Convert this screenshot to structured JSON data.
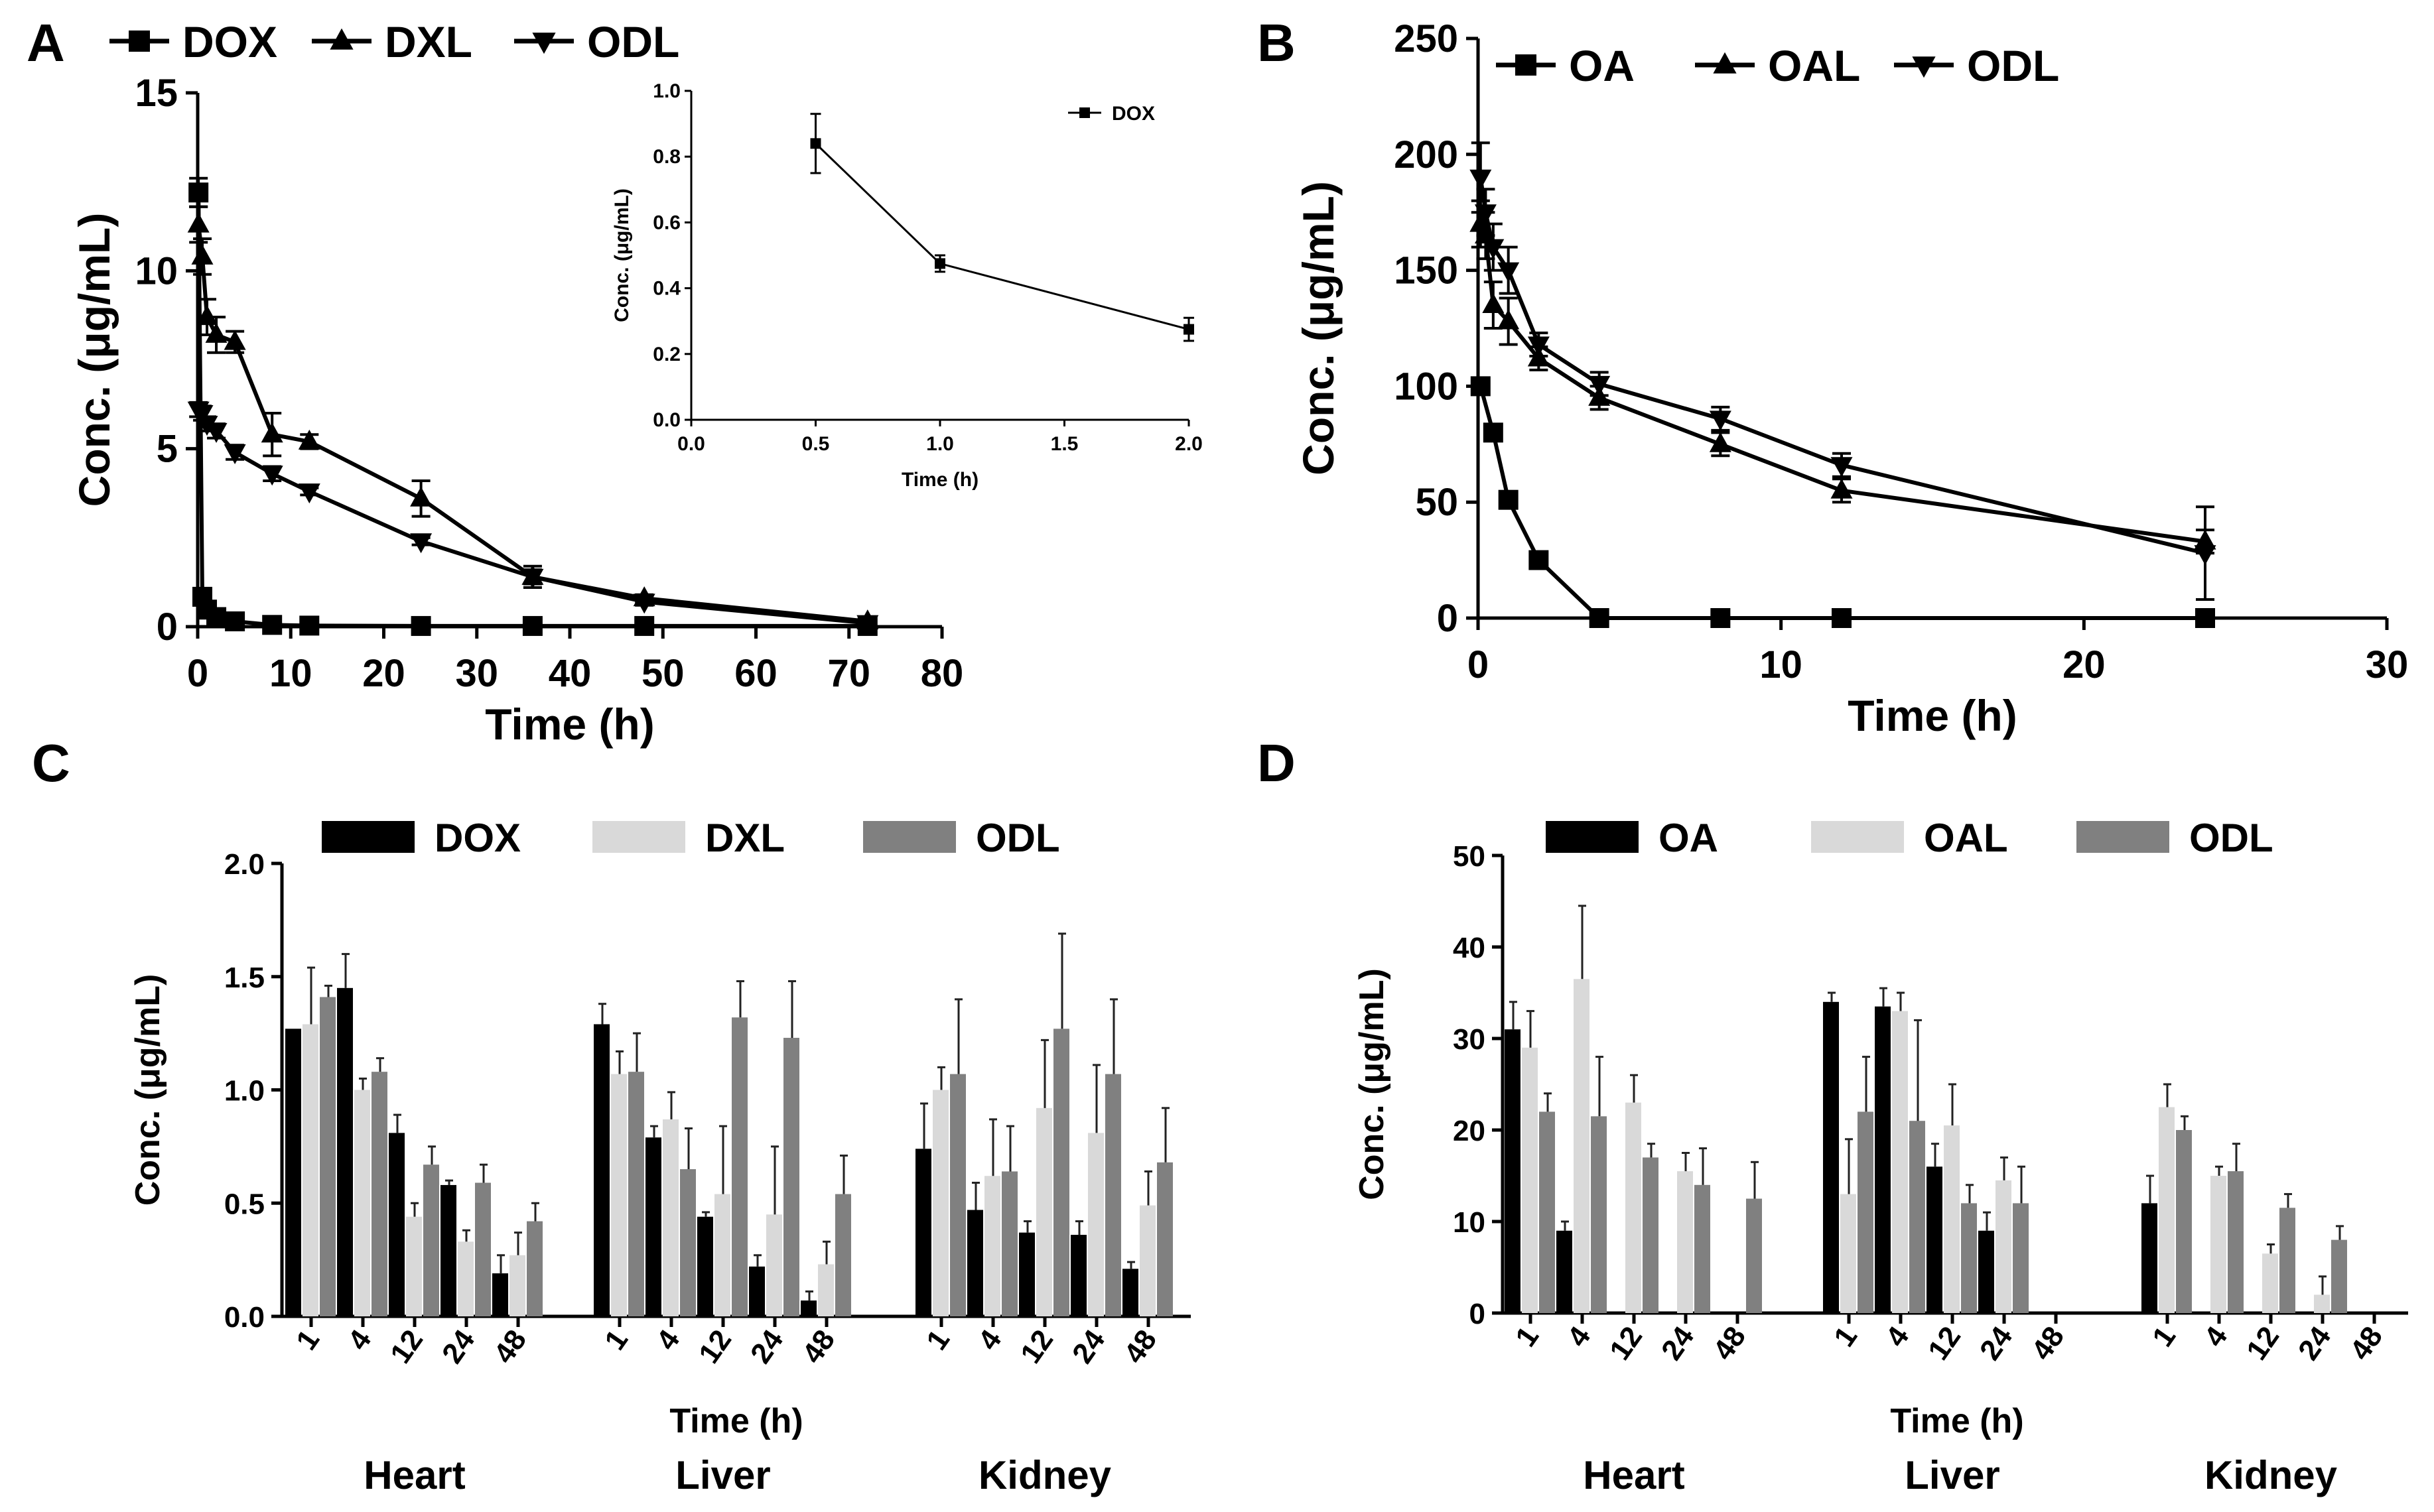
{
  "chart_data": [
    {
      "panel": "A",
      "type": "line",
      "xlabel": "Time (h)",
      "ylabel": "Conc. (μg/mL)",
      "xlim": [
        0,
        80
      ],
      "ylim": [
        0,
        15
      ],
      "xticks": [
        0,
        10,
        20,
        30,
        40,
        50,
        60,
        70,
        80
      ],
      "yticks": [
        0,
        5,
        10,
        15
      ],
      "legend": [
        "DOX",
        "DXL",
        "ODL"
      ],
      "series": [
        {
          "name": "DOX",
          "marker": "square",
          "x": [
            0.083,
            0.5,
            1,
            2,
            4,
            8,
            12,
            24,
            36,
            48,
            72
          ],
          "y": [
            12.2,
            0.84,
            0.48,
            0.27,
            0.15,
            0.05,
            0.03,
            0.02,
            0.02,
            0.02,
            0.02
          ],
          "err": [
            0.4,
            0.09,
            0.03,
            0.03,
            0.02,
            0,
            0,
            0,
            0,
            0,
            0
          ]
        },
        {
          "name": "DXL",
          "marker": "triangle-up",
          "x": [
            0.083,
            0.5,
            1,
            2,
            4,
            8,
            12,
            24,
            36,
            48,
            72
          ],
          "y": [
            11.3,
            10.4,
            8.7,
            8.2,
            8.0,
            5.4,
            5.2,
            3.6,
            1.4,
            0.8,
            0.15
          ],
          "err": [
            0.5,
            0.5,
            0.5,
            0.5,
            0.3,
            0.6,
            0.2,
            0.5,
            0.3,
            0.1,
            0.1
          ]
        },
        {
          "name": "ODL",
          "marker": "triangle-down",
          "x": [
            0.083,
            0.5,
            1,
            2,
            4,
            8,
            12,
            24,
            36,
            48,
            72
          ],
          "y": [
            6.1,
            6.0,
            5.7,
            5.5,
            4.9,
            4.3,
            3.8,
            2.4,
            1.4,
            0.7,
            0.1
          ],
          "err": [
            0.2,
            0.2,
            0.2,
            0.2,
            0.2,
            0.2,
            0.1,
            0.1,
            0.2,
            0.1,
            0.1
          ]
        }
      ],
      "inset": {
        "type": "line",
        "xlabel": "Time (h)",
        "ylabel": "Conc. (μg/mL)",
        "xlim": [
          0.0,
          2.0
        ],
        "ylim": [
          0.0,
          1.0
        ],
        "xticks": [
          "0.0",
          "0.5",
          "1.0",
          "1.5",
          "2.0"
        ],
        "yticks": [
          "0.0",
          "0.2",
          "0.4",
          "0.6",
          "0.8",
          "1.0"
        ],
        "legend": [
          "DOX"
        ],
        "series": [
          {
            "name": "DOX",
            "x": [
              0.5,
              1.0,
              2.0
            ],
            "y": [
              0.84,
              0.475,
              0.275
            ],
            "err": [
              0.09,
              0.025,
              0.035
            ]
          }
        ]
      }
    },
    {
      "panel": "B",
      "type": "line",
      "xlabel": "Time (h)",
      "ylabel": "Conc. (μg/mL)",
      "xlim": [
        0,
        30
      ],
      "ylim": [
        0,
        250
      ],
      "xticks": [
        0,
        10,
        20,
        30
      ],
      "yticks": [
        0,
        50,
        100,
        150,
        200,
        250
      ],
      "legend": [
        "OA",
        "OAL",
        "ODL"
      ],
      "series": [
        {
          "name": "OA",
          "marker": "square",
          "x": [
            0.083,
            0.5,
            1,
            2,
            4,
            8,
            12,
            24
          ],
          "y": [
            100,
            80,
            51,
            25,
            0,
            0,
            0,
            0
          ],
          "err": [
            3,
            3,
            2,
            2,
            0,
            0,
            0,
            0
          ]
        },
        {
          "name": "OAL",
          "marker": "triangle-up",
          "x": [
            0.083,
            0.25,
            0.5,
            1,
            2,
            4,
            8,
            12,
            24
          ],
          "y": [
            170,
            165,
            135,
            128,
            112,
            95,
            75,
            55,
            33
          ],
          "err": [
            10,
            10,
            10,
            10,
            5,
            5,
            5,
            5,
            5
          ]
        },
        {
          "name": "ODL",
          "marker": "triangle-down",
          "x": [
            0.083,
            0.25,
            0.5,
            1,
            2,
            4,
            8,
            12,
            24
          ],
          "y": [
            190,
            175,
            160,
            150,
            118,
            101,
            86,
            66,
            28
          ],
          "err": [
            15,
            10,
            10,
            10,
            5,
            5,
            5,
            5,
            20
          ]
        }
      ]
    },
    {
      "panel": "C",
      "type": "bar",
      "xlabel": "Time (h)",
      "ylabel": "Conc. (μg/mL)",
      "ylim": [
        0,
        2.0
      ],
      "yticks": [
        "0.0",
        "0.5",
        "1.0",
        "1.5",
        "2.0"
      ],
      "legend": [
        "DOX",
        "DXL",
        "ODL"
      ],
      "categories": [
        "1",
        "4",
        "12",
        "24",
        "48"
      ],
      "groups": [
        {
          "organ": "Heart",
          "series": [
            {
              "name": "DOX",
              "values": [
                1.27,
                1.45,
                0.81,
                0.58,
                0.19
              ],
              "err": [
                0,
                0.15,
                0.08,
                0.02,
                0.08
              ]
            },
            {
              "name": "DXL",
              "values": [
                1.29,
                1.0,
                0.44,
                0.33,
                0.27
              ],
              "err": [
                0.25,
                0.05,
                0.06,
                0.05,
                0.1
              ]
            },
            {
              "name": "ODL",
              "values": [
                1.41,
                1.08,
                0.67,
                0.59,
                0.42
              ],
              "err": [
                0.05,
                0.06,
                0.08,
                0.08,
                0.08
              ]
            }
          ]
        },
        {
          "organ": "Liver",
          "series": [
            {
              "name": "DOX",
              "values": [
                1.29,
                0.79,
                0.44,
                0.22,
                0.07
              ],
              "err": [
                0.09,
                0.05,
                0.02,
                0.05,
                0.04
              ]
            },
            {
              "name": "DXL",
              "values": [
                1.07,
                0.87,
                0.54,
                0.45,
                0.23
              ],
              "err": [
                0.1,
                0.12,
                0.3,
                0.3,
                0.1
              ]
            },
            {
              "name": "ODL",
              "values": [
                1.08,
                0.65,
                1.32,
                1.23,
                0.54
              ],
              "err": [
                0.17,
                0.18,
                0.16,
                0.25,
                0.17
              ]
            }
          ]
        },
        {
          "organ": "Kidney",
          "series": [
            {
              "name": "DOX",
              "values": [
                0.74,
                0.47,
                0.37,
                0.36,
                0.21
              ],
              "err": [
                0.2,
                0.12,
                0.05,
                0.06,
                0.03
              ]
            },
            {
              "name": "DXL",
              "values": [
                1.0,
                0.62,
                0.92,
                0.81,
                0.49
              ],
              "err": [
                0.1,
                0.25,
                0.3,
                0.3,
                0.15
              ]
            },
            {
              "name": "ODL",
              "values": [
                1.07,
                0.64,
                1.27,
                1.07,
                0.68
              ],
              "err": [
                0.33,
                0.2,
                0.42,
                0.33,
                0.24
              ]
            }
          ]
        }
      ]
    },
    {
      "panel": "D",
      "type": "bar",
      "xlabel": "Time (h)",
      "ylabel": "Conc. (μg/mL)",
      "ylim": [
        0,
        50
      ],
      "yticks": [
        "0",
        "10",
        "20",
        "30",
        "40",
        "50"
      ],
      "legend": [
        "OA",
        "OAL",
        "ODL"
      ],
      "categories": [
        "1",
        "4",
        "12",
        "24",
        "48"
      ],
      "groups": [
        {
          "organ": "Heart",
          "series": [
            {
              "name": "OA",
              "values": [
                31,
                9,
                0,
                0,
                0
              ],
              "err": [
                3,
                1,
                0,
                0,
                0
              ]
            },
            {
              "name": "OAL",
              "values": [
                29,
                36.5,
                23,
                15.5,
                0
              ],
              "err": [
                4,
                8,
                3,
                2,
                0
              ]
            },
            {
              "name": "ODL",
              "values": [
                22,
                21.5,
                17,
                14,
                12.5
              ],
              "err": [
                2,
                6.5,
                1.5,
                4,
                4
              ]
            }
          ]
        },
        {
          "organ": "Liver",
          "series": [
            {
              "name": "OA",
              "values": [
                34,
                33.5,
                16,
                9,
                0
              ],
              "err": [
                1,
                2,
                2.5,
                2,
                0
              ]
            },
            {
              "name": "OAL",
              "values": [
                13,
                33,
                20.5,
                14.5,
                0
              ],
              "err": [
                6,
                2,
                4.5,
                2.5,
                0
              ]
            },
            {
              "name": "ODL",
              "values": [
                22,
                21,
                12,
                12,
                0
              ],
              "err": [
                6,
                11,
                2,
                4,
                0
              ]
            }
          ]
        },
        {
          "organ": "Kidney",
          "series": [
            {
              "name": "OA",
              "values": [
                12,
                0,
                0,
                0,
                0
              ],
              "err": [
                3,
                0,
                0,
                0,
                0
              ]
            },
            {
              "name": "OAL",
              "values": [
                22.5,
                15,
                6.5,
                2,
                0
              ],
              "err": [
                2.5,
                1,
                1,
                2,
                0
              ]
            },
            {
              "name": "ODL",
              "values": [
                20,
                15.5,
                11.5,
                8,
                0
              ],
              "err": [
                1.5,
                3,
                1.5,
                1.5,
                0
              ]
            }
          ]
        }
      ]
    }
  ],
  "panel_labels": [
    "A",
    "B",
    "C",
    "D"
  ],
  "organ_labels": [
    "Heart",
    "Liver",
    "Kidney"
  ],
  "colors": {
    "black_bar": "#000000",
    "light_bar": "#d9d9d9",
    "mid_bar": "#808080"
  }
}
